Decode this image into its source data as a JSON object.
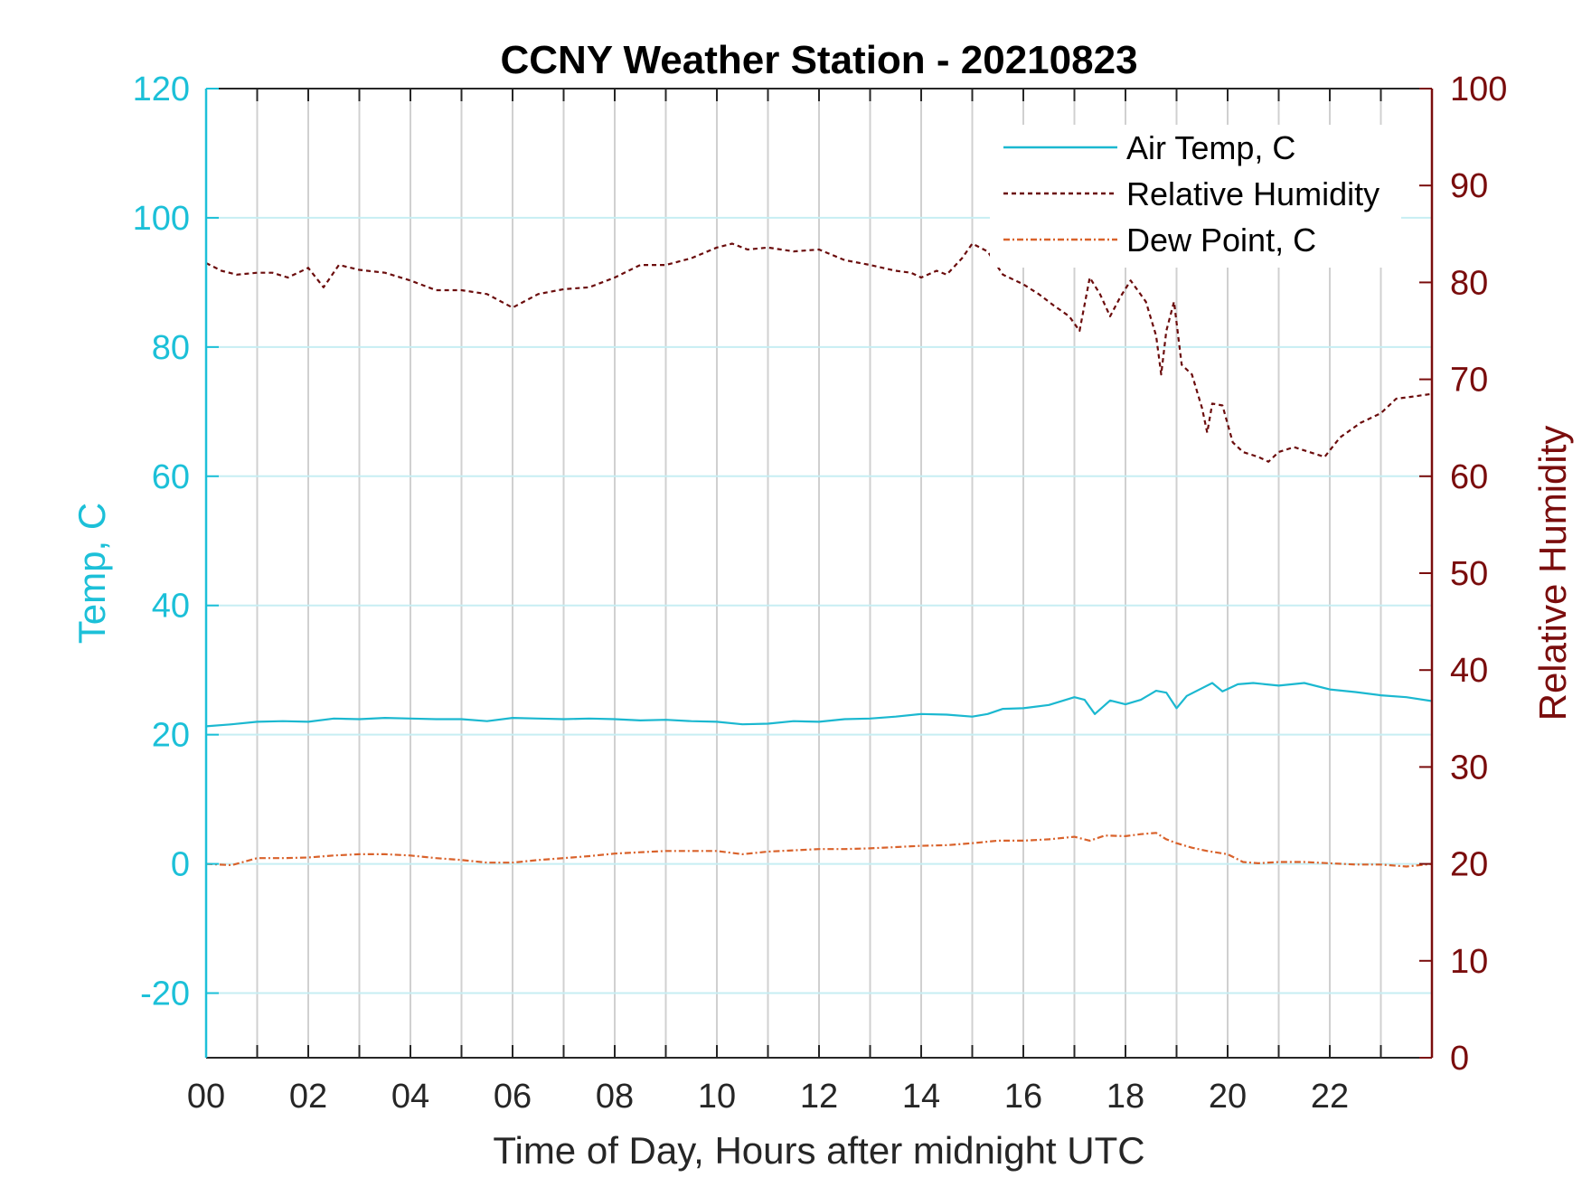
{
  "chart_data": {
    "type": "line",
    "title": "CCNY Weather Station - 20210823",
    "xlabel": "Time of Day, Hours after midnight UTC",
    "ylabel_left": "Temp, C",
    "ylabel_right": "Relative Humidity",
    "xlim": [
      0,
      24
    ],
    "ylim_left": [
      -30,
      120
    ],
    "ylim_right": [
      0,
      100
    ],
    "x_ticks": [
      0,
      2,
      4,
      6,
      8,
      10,
      12,
      14,
      16,
      18,
      20,
      22
    ],
    "x_tick_labels": [
      "00",
      "02",
      "04",
      "06",
      "08",
      "10",
      "12",
      "14",
      "16",
      "18",
      "20",
      "22"
    ],
    "y_left_ticks": [
      -20,
      0,
      20,
      40,
      60,
      80,
      100,
      120
    ],
    "y_left_tick_labels": [
      "-20",
      "0",
      "20",
      "40",
      "60",
      "80",
      "100",
      "120"
    ],
    "y_right_ticks": [
      0,
      10,
      20,
      30,
      40,
      50,
      60,
      70,
      80,
      90,
      100
    ],
    "y_right_tick_labels": [
      "0",
      "10",
      "20",
      "30",
      "40",
      "50",
      "60",
      "70",
      "80",
      "90",
      "100"
    ],
    "grid": true,
    "legend_position": "top-right",
    "colors": {
      "left_axis": "#1cc0d8",
      "right_axis": "#7a0d0d",
      "air_temp": "#1bb8d0",
      "relative_humidity": "#6b0c0c",
      "dew_point": "#d9622b",
      "grid_vertical": "#d0d0d0",
      "grid_horizontal": "#c7eef3"
    },
    "series": [
      {
        "name": "Air Temp, C",
        "axis": "left",
        "style": "solid",
        "x": [
          0,
          0.5,
          1,
          1.5,
          2,
          2.5,
          3,
          3.5,
          4,
          4.5,
          5,
          5.5,
          6,
          6.5,
          7,
          7.5,
          8,
          8.5,
          9,
          9.5,
          10,
          10.5,
          11,
          11.5,
          12,
          12.5,
          13,
          13.5,
          14,
          14.5,
          15,
          15.3,
          15.6,
          16,
          16.5,
          17,
          17.2,
          17.4,
          17.7,
          18,
          18.3,
          18.6,
          18.8,
          19,
          19.2,
          19.5,
          19.7,
          19.9,
          20.2,
          20.5,
          21,
          21.5,
          22,
          22.5,
          23,
          23.5,
          24
        ],
        "y": [
          21.3,
          21.6,
          22.0,
          22.1,
          22.0,
          22.5,
          22.4,
          22.6,
          22.5,
          22.4,
          22.4,
          22.1,
          22.6,
          22.5,
          22.4,
          22.5,
          22.4,
          22.2,
          22.3,
          22.1,
          22.0,
          21.6,
          21.7,
          22.1,
          22.0,
          22.4,
          22.5,
          22.8,
          23.2,
          23.1,
          22.8,
          23.2,
          24.0,
          24.1,
          24.6,
          25.8,
          25.4,
          23.2,
          25.3,
          24.7,
          25.4,
          26.8,
          26.5,
          24.1,
          26.0,
          27.2,
          28.0,
          26.7,
          27.8,
          28.0,
          27.6,
          28.0,
          27.0,
          26.6,
          26.1,
          25.8,
          25.2
        ]
      },
      {
        "name": "Relative Humidity",
        "axis": "right",
        "style": "dashed",
        "x": [
          0,
          0.3,
          0.6,
          1,
          1.3,
          1.6,
          2,
          2.3,
          2.6,
          3,
          3.5,
          4,
          4.5,
          5,
          5.5,
          6,
          6.5,
          7,
          7.5,
          8,
          8.5,
          9,
          9.5,
          10,
          10.3,
          10.6,
          11,
          11.5,
          12,
          12.5,
          13,
          13.5,
          13.8,
          14,
          14.3,
          14.5,
          14.8,
          15,
          15.3,
          15.6,
          16,
          16.3,
          16.6,
          16.9,
          17.1,
          17.3,
          17.5,
          17.7,
          17.9,
          18.1,
          18.4,
          18.6,
          18.7,
          18.8,
          18.95,
          19.1,
          19.3,
          19.5,
          19.6,
          19.7,
          19.9,
          20.1,
          20.3,
          20.6,
          20.8,
          21,
          21.3,
          21.6,
          21.9,
          22.2,
          22.6,
          23,
          23.3,
          23.6,
          24
        ],
        "y": [
          82.0,
          81.2,
          80.8,
          81.0,
          81.0,
          80.5,
          81.5,
          79.5,
          81.8,
          81.3,
          81.0,
          80.2,
          79.2,
          79.2,
          78.8,
          77.4,
          78.8,
          79.3,
          79.5,
          80.5,
          81.8,
          81.8,
          82.5,
          83.6,
          84.0,
          83.4,
          83.6,
          83.2,
          83.4,
          82.3,
          81.8,
          81.2,
          81.0,
          80.5,
          81.2,
          80.8,
          82.5,
          84.0,
          83.2,
          80.8,
          79.8,
          78.8,
          77.6,
          76.5,
          75.0,
          80.5,
          78.8,
          76.5,
          78.5,
          80.2,
          78.0,
          74.5,
          70.5,
          75.0,
          78.0,
          71.5,
          70.5,
          67.0,
          64.5,
          67.5,
          67.3,
          63.5,
          62.5,
          62.0,
          61.5,
          62.5,
          63.0,
          62.5,
          62.0,
          64.0,
          65.5,
          66.5,
          68.0,
          68.2,
          68.5
        ]
      },
      {
        "name": "Dew Point, C",
        "axis": "left",
        "style": "dashdot",
        "x": [
          0,
          0.5,
          1,
          1.5,
          2,
          2.5,
          3,
          3.5,
          4,
          4.5,
          5,
          5.5,
          6,
          6.5,
          7,
          7.5,
          8,
          8.5,
          9,
          9.5,
          10,
          10.5,
          11,
          11.5,
          12,
          12.5,
          13,
          13.5,
          14,
          14.5,
          15,
          15.5,
          16,
          16.5,
          17,
          17.3,
          17.6,
          18,
          18.3,
          18.6,
          18.8,
          19,
          19.3,
          19.6,
          20,
          20.3,
          20.6,
          21,
          21.5,
          22,
          22.5,
          23,
          23.5,
          24
        ],
        "y": [
          0.0,
          -0.2,
          0.9,
          0.9,
          1.0,
          1.3,
          1.5,
          1.5,
          1.3,
          0.9,
          0.6,
          0.2,
          0.2,
          0.6,
          0.9,
          1.2,
          1.6,
          1.8,
          2.0,
          2.0,
          2.0,
          1.5,
          1.9,
          2.1,
          2.3,
          2.3,
          2.4,
          2.6,
          2.8,
          2.9,
          3.2,
          3.6,
          3.6,
          3.8,
          4.2,
          3.6,
          4.4,
          4.3,
          4.6,
          4.8,
          3.8,
          3.2,
          2.5,
          2.0,
          1.5,
          0.3,
          0.1,
          0.3,
          0.3,
          0.1,
          -0.1,
          -0.1,
          -0.4,
          0.0
        ]
      }
    ]
  }
}
